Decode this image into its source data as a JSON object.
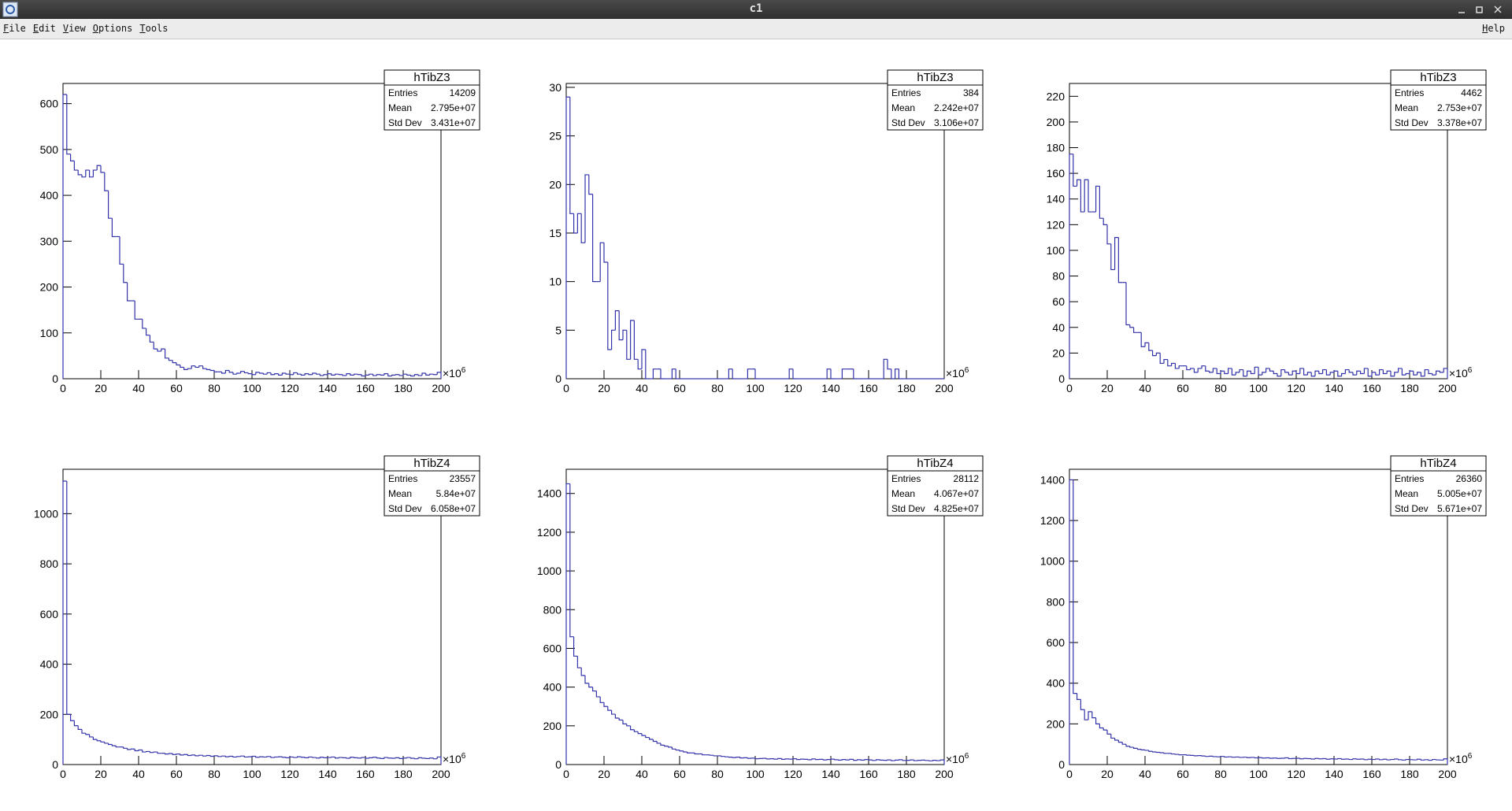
{
  "window": {
    "title": "c1",
    "menu": [
      "File",
      "Edit",
      "View",
      "Options",
      "Tools"
    ],
    "help": "Help"
  },
  "chart_data": [
    {
      "type": "histogram",
      "title": "hTibZ3",
      "color": "#3333aa",
      "stats": {
        "labels": [
          "Entries",
          "Mean",
          "Std Dev"
        ],
        "values": [
          14209,
          "2.795e+07",
          "3.431e+07"
        ]
      },
      "bins": [
        0,
        2,
        4,
        6,
        8,
        10,
        12,
        14,
        16,
        18,
        20,
        22,
        24,
        26,
        28,
        30,
        32,
        34,
        36,
        38,
        40,
        42,
        44,
        46,
        48,
        50,
        52,
        54,
        56,
        58,
        60,
        62,
        64,
        66,
        68,
        70,
        72,
        74,
        76,
        78,
        80,
        82,
        84,
        86,
        88,
        90,
        92,
        94,
        96,
        98,
        100,
        102,
        104,
        106,
        108,
        110,
        112,
        114,
        116,
        118,
        120,
        122,
        124,
        126,
        128,
        130,
        132,
        134,
        136,
        138,
        140,
        142,
        144,
        146,
        148,
        150,
        152,
        154,
        156,
        158,
        160,
        162,
        164,
        166,
        168,
        170,
        172,
        174,
        176,
        178,
        180,
        182,
        184,
        186,
        188,
        190,
        192,
        194,
        196,
        198,
        200
      ],
      "values": [
        620,
        490,
        475,
        455,
        445,
        440,
        455,
        440,
        455,
        465,
        450,
        410,
        350,
        310,
        310,
        250,
        210,
        170,
        170,
        130,
        130,
        110,
        95,
        80,
        65,
        60,
        65,
        45,
        40,
        35,
        30,
        25,
        20,
        22,
        28,
        25,
        28,
        22,
        20,
        18,
        15,
        15,
        12,
        18,
        14,
        10,
        12,
        16,
        13,
        11,
        9,
        14,
        12,
        10,
        13,
        9,
        11,
        8,
        12,
        10,
        9,
        13,
        10,
        8,
        11,
        9,
        12,
        10,
        7,
        9,
        11,
        8,
        10,
        9,
        7,
        11,
        8,
        10,
        9,
        6,
        8,
        10,
        7,
        9,
        8,
        11,
        6,
        8,
        9,
        7,
        10,
        8,
        6,
        9,
        7,
        12,
        8,
        10,
        9,
        14
      ],
      "xlim": [
        0,
        200
      ],
      "xticks": [
        0,
        20,
        40,
        60,
        80,
        100,
        120,
        140,
        160,
        180,
        200
      ],
      "x_multiplier": "×10",
      "x_multiplier_exp": "6",
      "ylim": [
        0,
        644
      ],
      "yticks": [
        0,
        100,
        200,
        300,
        400,
        500,
        600
      ]
    },
    {
      "type": "histogram",
      "title": "hTibZ3",
      "color": "#3333aa",
      "stats": {
        "labels": [
          "Entries",
          "Mean",
          "Std Dev"
        ],
        "values": [
          384,
          "2.242e+07",
          "3.106e+07"
        ]
      },
      "bins": [
        0,
        2,
        4,
        6,
        8,
        10,
        12,
        14,
        16,
        18,
        20,
        22,
        24,
        26,
        28,
        30,
        32,
        34,
        36,
        38,
        40,
        42,
        44,
        46,
        48,
        50,
        52,
        54,
        56,
        58,
        60,
        62,
        64,
        66,
        68,
        70,
        72,
        74,
        76,
        78,
        80,
        82,
        84,
        86,
        88,
        90,
        92,
        94,
        96,
        98,
        100,
        102,
        104,
        106,
        108,
        110,
        112,
        114,
        116,
        118,
        120,
        122,
        124,
        126,
        128,
        130,
        132,
        134,
        136,
        138,
        140,
        142,
        144,
        146,
        148,
        150,
        152,
        154,
        156,
        158,
        160,
        162,
        164,
        166,
        168,
        170,
        172,
        174,
        176,
        178,
        180,
        182,
        184,
        186,
        188,
        190,
        192,
        194,
        196,
        198,
        200
      ],
      "values": [
        29,
        17,
        15,
        17,
        14,
        21,
        19,
        10,
        10,
        14,
        12,
        3,
        5,
        7,
        4,
        5,
        2,
        6,
        2,
        1,
        3,
        0,
        0,
        1,
        1,
        0,
        0,
        0,
        1,
        0,
        0,
        0,
        0,
        0,
        0,
        0,
        0,
        0,
        0,
        0,
        0,
        0,
        0,
        1,
        0,
        0,
        0,
        0,
        1,
        1,
        0,
        0,
        0,
        0,
        0,
        0,
        0,
        0,
        0,
        1,
        0,
        0,
        0,
        0,
        0,
        0,
        0,
        0,
        0,
        1,
        0,
        0,
        0,
        1,
        1,
        1,
        0,
        0,
        0,
        0,
        0,
        0,
        0,
        0,
        2,
        1,
        0,
        1,
        0,
        0,
        0,
        0,
        0,
        0,
        0,
        0,
        0,
        0,
        0,
        0
      ],
      "xlim": [
        0,
        200
      ],
      "xticks": [
        0,
        20,
        40,
        60,
        80,
        100,
        120,
        140,
        160,
        180,
        200
      ],
      "x_multiplier": "×10",
      "x_multiplier_exp": "6",
      "ylim": [
        0,
        30.4
      ],
      "yticks": [
        0,
        5,
        10,
        15,
        20,
        25,
        30
      ]
    },
    {
      "type": "histogram",
      "title": "hTibZ3",
      "color": "#3333aa",
      "stats": {
        "labels": [
          "Entries",
          "Mean",
          "Std Dev"
        ],
        "values": [
          4462,
          "2.753e+07",
          "3.378e+07"
        ]
      },
      "bins": [
        0,
        2,
        4,
        6,
        8,
        10,
        12,
        14,
        16,
        18,
        20,
        22,
        24,
        26,
        28,
        30,
        32,
        34,
        36,
        38,
        40,
        42,
        44,
        46,
        48,
        50,
        52,
        54,
        56,
        58,
        60,
        62,
        64,
        66,
        68,
        70,
        72,
        74,
        76,
        78,
        80,
        82,
        84,
        86,
        88,
        90,
        92,
        94,
        96,
        98,
        100,
        102,
        104,
        106,
        108,
        110,
        112,
        114,
        116,
        118,
        120,
        122,
        124,
        126,
        128,
        130,
        132,
        134,
        136,
        138,
        140,
        142,
        144,
        146,
        148,
        150,
        152,
        154,
        156,
        158,
        160,
        162,
        164,
        166,
        168,
        170,
        172,
        174,
        176,
        178,
        180,
        182,
        184,
        186,
        188,
        190,
        192,
        194,
        196,
        198,
        200
      ],
      "values": [
        175,
        150,
        155,
        130,
        155,
        130,
        130,
        150,
        125,
        120,
        105,
        85,
        110,
        75,
        75,
        42,
        40,
        36,
        36,
        25,
        28,
        22,
        18,
        20,
        12,
        15,
        10,
        12,
        8,
        10,
        10,
        7,
        8,
        5,
        8,
        10,
        6,
        5,
        8,
        4,
        6,
        4,
        8,
        3,
        5,
        7,
        2,
        6,
        4,
        9,
        3,
        5,
        8,
        6,
        4,
        2,
        7,
        5,
        3,
        6,
        4,
        8,
        3,
        5,
        2,
        6,
        4,
        7,
        3,
        5,
        6,
        2,
        4,
        7,
        5,
        3,
        6,
        4,
        8,
        2,
        5,
        3,
        7,
        4,
        6,
        2,
        5,
        8,
        3,
        4,
        6,
        3,
        5,
        2,
        7,
        4,
        3,
        6,
        5,
        8
      ],
      "xlim": [
        0,
        200
      ],
      "xticks": [
        0,
        20,
        40,
        60,
        80,
        100,
        120,
        140,
        160,
        180,
        200
      ],
      "x_multiplier": "×10",
      "x_multiplier_exp": "6",
      "ylim": [
        0,
        230
      ],
      "yticks": [
        0,
        20,
        40,
        60,
        80,
        100,
        120,
        140,
        160,
        180,
        200,
        220
      ]
    },
    {
      "type": "histogram",
      "title": "hTibZ4",
      "color": "#3333aa",
      "stats": {
        "labels": [
          "Entries",
          "Mean",
          "Std Dev"
        ],
        "values": [
          23557,
          "5.84e+07",
          "6.058e+07"
        ]
      },
      "bins": [
        0,
        2,
        4,
        6,
        8,
        10,
        12,
        14,
        16,
        18,
        20,
        22,
        24,
        26,
        28,
        30,
        32,
        34,
        36,
        38,
        40,
        42,
        44,
        46,
        48,
        50,
        52,
        54,
        56,
        58,
        60,
        62,
        64,
        66,
        68,
        70,
        72,
        74,
        76,
        78,
        80,
        82,
        84,
        86,
        88,
        90,
        92,
        94,
        96,
        98,
        100,
        102,
        104,
        106,
        108,
        110,
        112,
        114,
        116,
        118,
        120,
        122,
        124,
        126,
        128,
        130,
        132,
        134,
        136,
        138,
        140,
        142,
        144,
        146,
        148,
        150,
        152,
        154,
        156,
        158,
        160,
        162,
        164,
        166,
        168,
        170,
        172,
        174,
        176,
        178,
        180,
        182,
        184,
        186,
        188,
        190,
        192,
        194,
        196,
        198,
        200
      ],
      "values": [
        1130,
        200,
        175,
        155,
        140,
        125,
        120,
        110,
        100,
        95,
        90,
        85,
        80,
        75,
        70,
        70,
        65,
        60,
        62,
        55,
        58,
        50,
        52,
        48,
        50,
        45,
        45,
        42,
        44,
        40,
        42,
        38,
        40,
        36,
        38,
        35,
        37,
        34,
        36,
        33,
        35,
        32,
        34,
        31,
        33,
        30,
        32,
        34,
        30,
        31,
        33,
        29,
        31,
        30,
        32,
        28,
        30,
        31,
        29,
        27,
        30,
        28,
        31,
        29,
        27,
        30,
        28,
        26,
        29,
        27,
        28,
        30,
        26,
        28,
        27,
        25,
        29,
        27,
        26,
        28,
        25,
        27,
        29,
        26,
        24,
        28,
        26,
        25,
        27,
        24,
        26,
        28,
        25,
        23,
        27,
        25,
        24,
        26,
        23,
        30
      ],
      "xlim": [
        0,
        200
      ],
      "xticks": [
        0,
        20,
        40,
        60,
        80,
        100,
        120,
        140,
        160,
        180,
        200
      ],
      "x_multiplier": "×10",
      "x_multiplier_exp": "6",
      "ylim": [
        0,
        1177
      ],
      "yticks": [
        0,
        200,
        400,
        600,
        800,
        1000
      ]
    },
    {
      "type": "histogram",
      "title": "hTibZ4",
      "color": "#3333aa",
      "stats": {
        "labels": [
          "Entries",
          "Mean",
          "Std Dev"
        ],
        "values": [
          28112,
          "4.067e+07",
          "4.825e+07"
        ]
      },
      "bins": [
        0,
        2,
        4,
        6,
        8,
        10,
        12,
        14,
        16,
        18,
        20,
        22,
        24,
        26,
        28,
        30,
        32,
        34,
        36,
        38,
        40,
        42,
        44,
        46,
        48,
        50,
        52,
        54,
        56,
        58,
        60,
        62,
        64,
        66,
        68,
        70,
        72,
        74,
        76,
        78,
        80,
        82,
        84,
        86,
        88,
        90,
        92,
        94,
        96,
        98,
        100,
        102,
        104,
        106,
        108,
        110,
        112,
        114,
        116,
        118,
        120,
        122,
        124,
        126,
        128,
        130,
        132,
        134,
        136,
        138,
        140,
        142,
        144,
        146,
        148,
        150,
        152,
        154,
        156,
        158,
        160,
        162,
        164,
        166,
        168,
        170,
        172,
        174,
        176,
        178,
        180,
        182,
        184,
        186,
        188,
        190,
        192,
        194,
        196,
        198,
        200
      ],
      "values": [
        1450,
        660,
        560,
        500,
        460,
        420,
        400,
        380,
        350,
        320,
        300,
        280,
        260,
        240,
        230,
        210,
        200,
        180,
        170,
        160,
        150,
        140,
        130,
        120,
        110,
        100,
        95,
        90,
        80,
        75,
        70,
        65,
        60,
        60,
        55,
        55,
        50,
        50,
        48,
        45,
        45,
        42,
        40,
        38,
        36,
        38,
        34,
        35,
        32,
        33,
        30,
        31,
        32,
        29,
        30,
        28,
        31,
        27,
        29,
        28,
        30,
        26,
        28,
        27,
        25,
        29,
        26,
        27,
        24,
        26,
        28,
        25,
        23,
        26,
        24,
        27,
        22,
        25,
        23,
        26,
        24,
        21,
        25,
        23,
        22,
        24,
        20,
        23,
        25,
        21,
        22,
        24,
        20,
        22,
        23,
        21,
        19,
        22,
        20,
        24
      ],
      "xlim": [
        0,
        200
      ],
      "xticks": [
        0,
        20,
        40,
        60,
        80,
        100,
        120,
        140,
        160,
        180,
        200
      ],
      "x_multiplier": "×10",
      "x_multiplier_exp": "6",
      "ylim": [
        0,
        1525
      ],
      "yticks": [
        0,
        200,
        400,
        600,
        800,
        1000,
        1200,
        1400
      ]
    },
    {
      "type": "histogram",
      "title": "hTibZ4",
      "color": "#3333aa",
      "stats": {
        "labels": [
          "Entries",
          "Mean",
          "Std Dev"
        ],
        "values": [
          26360,
          "5.005e+07",
          "5.671e+07"
        ]
      },
      "bins": [
        0,
        2,
        4,
        6,
        8,
        10,
        12,
        14,
        16,
        18,
        20,
        22,
        24,
        26,
        28,
        30,
        32,
        34,
        36,
        38,
        40,
        42,
        44,
        46,
        48,
        50,
        52,
        54,
        56,
        58,
        60,
        62,
        64,
        66,
        68,
        70,
        72,
        74,
        76,
        78,
        80,
        82,
        84,
        86,
        88,
        90,
        92,
        94,
        96,
        98,
        100,
        102,
        104,
        106,
        108,
        110,
        112,
        114,
        116,
        118,
        120,
        122,
        124,
        126,
        128,
        130,
        132,
        134,
        136,
        138,
        140,
        142,
        144,
        146,
        148,
        150,
        152,
        154,
        156,
        158,
        160,
        162,
        164,
        166,
        168,
        170,
        172,
        174,
        176,
        178,
        180,
        182,
        184,
        186,
        188,
        190,
        192,
        194,
        196,
        198,
        200
      ],
      "values": [
        1400,
        350,
        320,
        270,
        220,
        260,
        230,
        200,
        180,
        170,
        150,
        130,
        120,
        110,
        100,
        90,
        85,
        80,
        75,
        72,
        70,
        65,
        62,
        60,
        58,
        55,
        55,
        52,
        50,
        48,
        48,
        46,
        45,
        43,
        44,
        42,
        40,
        41,
        39,
        38,
        40,
        37,
        38,
        36,
        37,
        35,
        36,
        34,
        35,
        33,
        34,
        32,
        33,
        31,
        32,
        30,
        31,
        33,
        29,
        30,
        31,
        28,
        30,
        29,
        27,
        30,
        28,
        29,
        26,
        28,
        27,
        29,
        26,
        27,
        25,
        28,
        26,
        27,
        24,
        26,
        25,
        27,
        24,
        26,
        23,
        25,
        27,
        24,
        22,
        25,
        24,
        23,
        26,
        22,
        24,
        21,
        25,
        23,
        22,
        28
      ],
      "xlim": [
        0,
        200
      ],
      "xticks": [
        0,
        20,
        40,
        60,
        80,
        100,
        120,
        140,
        160,
        180,
        200
      ],
      "x_multiplier": "×10",
      "x_multiplier_exp": "6",
      "ylim": [
        0,
        1452
      ],
      "yticks": [
        0,
        200,
        400,
        600,
        800,
        1000,
        1200,
        1400
      ]
    }
  ]
}
